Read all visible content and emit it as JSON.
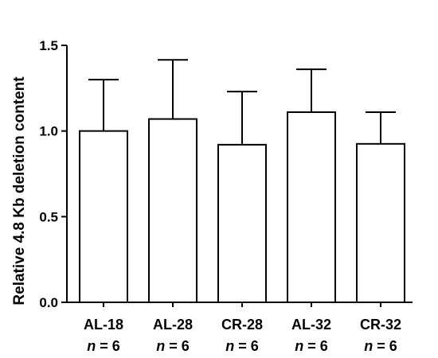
{
  "chart_data": {
    "type": "bar",
    "title": "",
    "xlabel": "",
    "ylabel": "Relative 4.8 Kb deletion content",
    "ylim": [
      0,
      1.5
    ],
    "yticks": [
      "0.0",
      "0.5",
      "1.0",
      "1.5"
    ],
    "ytick_values": [
      0,
      0.5,
      1.0,
      1.5
    ],
    "categories": [
      "AL-18",
      "AL-28",
      "CR-28",
      "AL-32",
      "CR-32"
    ],
    "sample_sizes": [
      "n = 6",
      "n = 6",
      "n = 6",
      "n = 6",
      "n = 6"
    ],
    "n_italic": "n",
    "n_rest": " = 6",
    "values": [
      1.0,
      1.07,
      0.92,
      1.11,
      0.925
    ],
    "error_upper": [
      0.3,
      0.345,
      0.31,
      0.25,
      0.185
    ],
    "bar_fill": "#ffffff",
    "bar_stroke": "#000000",
    "grid": false
  }
}
